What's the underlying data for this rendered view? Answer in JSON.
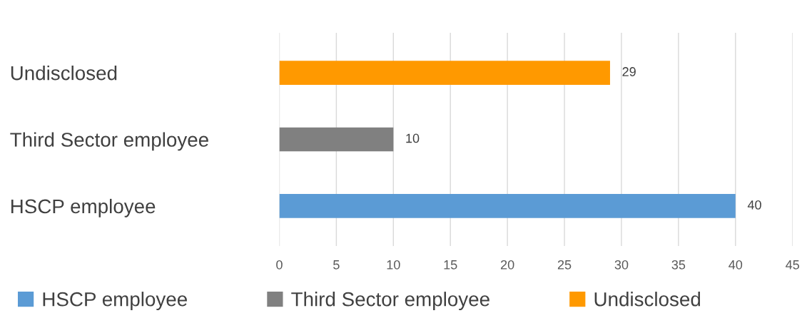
{
  "chart_data": {
    "type": "bar",
    "orientation": "horizontal",
    "stacked": true,
    "categories": [
      "Undisclosed",
      "Third Sector employee",
      "HSCP employee"
    ],
    "series": [
      {
        "name": "HSCP employee",
        "color": "#5b9bd5",
        "values": [
          null,
          null,
          40
        ]
      },
      {
        "name": "Third Sector employee",
        "color": "#808080",
        "values": [
          null,
          10,
          null
        ]
      },
      {
        "name": "Undisclosed",
        "color": "#ff9900",
        "values": [
          29,
          null,
          null
        ]
      }
    ],
    "xlim": [
      0,
      45
    ],
    "xticks": [
      0,
      5,
      10,
      15,
      20,
      25,
      30,
      35,
      40,
      45
    ],
    "grid": "x",
    "data_labels": true,
    "legend": "bottom"
  }
}
